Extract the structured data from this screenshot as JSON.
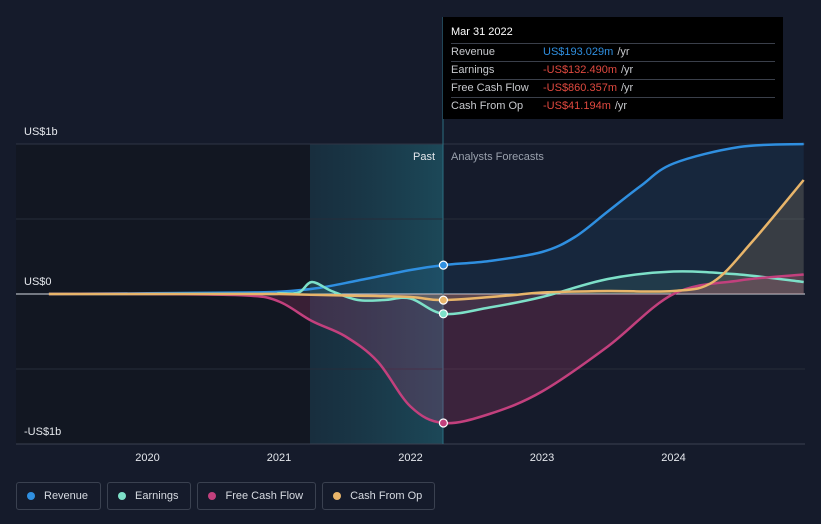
{
  "chart_data": {
    "type": "line",
    "y_labels": [
      "US$1b",
      "US$0",
      "-US$1b"
    ],
    "x_ticks": [
      "2020",
      "2021",
      "2022",
      "2023",
      "2024"
    ],
    "x_range": [
      2019.25,
      2024.99
    ],
    "y_range": [
      -1.0,
      1.0
    ],
    "past_label": "Past",
    "forecast_label": "Analysts Forecasts",
    "divider_x": 2022.25,
    "series": [
      {
        "name": "Revenue",
        "color": "#2f8fe0",
        "x": [
          2019.25,
          2020.0,
          2020.75,
          2021.0,
          2021.3,
          2021.6,
          2022.0,
          2022.25,
          2022.6,
          2023.0,
          2023.25,
          2023.5,
          2023.75,
          2024.0,
          2024.5,
          2024.99
        ],
        "y": [
          0.0,
          0.005,
          0.01,
          0.015,
          0.04,
          0.09,
          0.16,
          0.193,
          0.22,
          0.28,
          0.38,
          0.55,
          0.72,
          0.87,
          0.98,
          1.0
        ]
      },
      {
        "name": "Earnings",
        "color": "#7de0c8",
        "x": [
          2019.25,
          2020.0,
          2020.9,
          2021.0,
          2021.15,
          2021.25,
          2021.4,
          2021.6,
          2021.8,
          2022.0,
          2022.25,
          2022.6,
          2023.0,
          2023.5,
          2024.0,
          2024.5,
          2024.99
        ],
        "y": [
          0.0,
          0.0,
          0.0,
          0.005,
          0.01,
          0.08,
          0.02,
          -0.04,
          -0.04,
          -0.03,
          -0.132,
          -0.09,
          -0.02,
          0.1,
          0.15,
          0.13,
          0.08
        ]
      },
      {
        "name": "Free Cash Flow",
        "color": "#c2407d",
        "x": [
          2019.25,
          2020.0,
          2020.75,
          2021.0,
          2021.25,
          2021.5,
          2021.75,
          2022.0,
          2022.25,
          2022.6,
          2023.0,
          2023.5,
          2024.0,
          2024.5,
          2024.99
        ],
        "y": [
          0.0,
          0.0,
          -0.01,
          -0.05,
          -0.18,
          -0.28,
          -0.45,
          -0.75,
          -0.86,
          -0.8,
          -0.65,
          -0.35,
          0.0,
          0.09,
          0.13
        ]
      },
      {
        "name": "Cash From Op",
        "color": "#e8b56a",
        "x": [
          2019.25,
          2020.0,
          2020.75,
          2021.0,
          2021.5,
          2022.0,
          2022.25,
          2022.75,
          2023.0,
          2023.5,
          2024.0,
          2024.3,
          2024.6,
          2024.99
        ],
        "y": [
          0.0,
          0.0,
          0.0,
          0.0,
          -0.01,
          -0.02,
          -0.041,
          -0.01,
          0.01,
          0.02,
          0.02,
          0.08,
          0.35,
          0.76
        ]
      }
    ],
    "highlight_x": 2022.25
  },
  "tooltip": {
    "date": "Mar 31 2022",
    "rows": [
      {
        "label": "Revenue",
        "value": "US$193.029m",
        "unit": "/yr",
        "color": "#2f8fe0"
      },
      {
        "label": "Earnings",
        "value": "-US$132.490m",
        "unit": "/yr",
        "color": "#e0493f"
      },
      {
        "label": "Free Cash Flow",
        "value": "-US$860.357m",
        "unit": "/yr",
        "color": "#e0493f"
      },
      {
        "label": "Cash From Op",
        "value": "-US$41.194m",
        "unit": "/yr",
        "color": "#e0493f"
      }
    ]
  },
  "legend": [
    {
      "label": "Revenue",
      "color": "#2f8fe0"
    },
    {
      "label": "Earnings",
      "color": "#7de0c8"
    },
    {
      "label": "Free Cash Flow",
      "color": "#c2407d"
    },
    {
      "label": "Cash From Op",
      "color": "#e8b56a"
    }
  ]
}
